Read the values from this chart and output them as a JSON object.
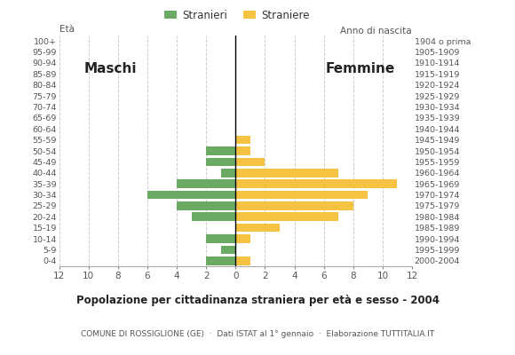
{
  "age_groups": [
    "0-4",
    "5-9",
    "10-14",
    "15-19",
    "20-24",
    "25-29",
    "30-34",
    "35-39",
    "40-44",
    "45-49",
    "50-54",
    "55-59",
    "60-64",
    "65-69",
    "70-74",
    "75-79",
    "80-84",
    "85-89",
    "90-94",
    "95-99",
    "100+"
  ],
  "birth_years": [
    "2000-2004",
    "1995-1999",
    "1990-1994",
    "1985-1989",
    "1980-1984",
    "1975-1979",
    "1970-1974",
    "1965-1969",
    "1960-1964",
    "1955-1959",
    "1950-1954",
    "1945-1949",
    "1940-1944",
    "1935-1939",
    "1930-1934",
    "1925-1929",
    "1920-1924",
    "1915-1919",
    "1910-1914",
    "1905-1909",
    "1904 o prima"
  ],
  "males": [
    2,
    1,
    2,
    0,
    3,
    4,
    6,
    4,
    1,
    2,
    2,
    0,
    0,
    0,
    0,
    0,
    0,
    0,
    0,
    0,
    0
  ],
  "females": [
    1,
    0,
    1,
    3,
    7,
    8,
    9,
    11,
    7,
    2,
    1,
    1,
    0,
    0,
    0,
    0,
    0,
    0,
    0,
    0,
    0
  ],
  "male_color": "#6aaa64",
  "female_color": "#f5c242",
  "title": "Popolazione per cittadinanza straniera per età e sesso - 2004",
  "subtitle": "COMUNE DI ROSSIGLIONE (GE)  ·  Dati ISTAT al 1° gennaio  ·  Elaborazione TUTTITALIA.IT",
  "xlabel_left": "Età",
  "xlabel_right": "Anno di nascita",
  "legend_male": "Stranieri",
  "legend_female": "Straniere",
  "label_maschi": "Maschi",
  "label_femmine": "Femmine",
  "xlim": 12,
  "background_color": "#ffffff",
  "grid_color": "#cccccc"
}
